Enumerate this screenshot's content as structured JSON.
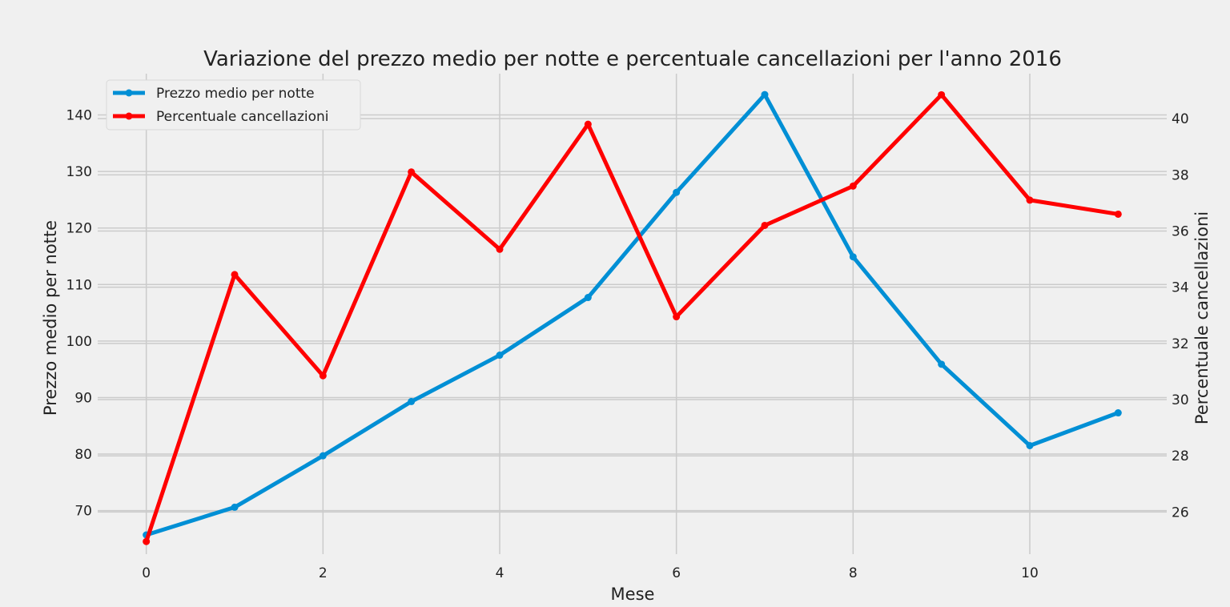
{
  "chart_data": {
    "type": "line",
    "title": "Variazione del prezzo medio per notte e percentuale cancellazioni per l'anno 2016",
    "xlabel": "Mese",
    "ylabel_left": "Prezzo medio per notte",
    "ylabel_right": "Percentuale cancellazioni",
    "x": [
      0,
      1,
      2,
      3,
      4,
      5,
      6,
      7,
      8,
      9,
      10,
      11
    ],
    "xticks": [
      0,
      2,
      4,
      6,
      8,
      10
    ],
    "xlim": [
      -0.55,
      11.55
    ],
    "ylim_left": [
      62.3,
      147.3
    ],
    "yticks_left": [
      70,
      80,
      90,
      100,
      110,
      120,
      130,
      140
    ],
    "ylim_right": [
      24.5,
      41.6
    ],
    "yticks_right": [
      26,
      28,
      30,
      32,
      34,
      36,
      38,
      40
    ],
    "grid": true,
    "legend_position": "top-left",
    "series": [
      {
        "name": "Prezzo medio per notte",
        "axis": "left",
        "color": "#008fd5",
        "values": [
          65.7,
          70.6,
          79.7,
          89.3,
          97.5,
          107.7,
          126.3,
          143.6,
          114.9,
          95.9,
          81.5,
          87.3
        ]
      },
      {
        "name": "Percentuale cancellazioni",
        "axis": "right",
        "color": "#ff0000",
        "values": [
          24.95,
          34.45,
          30.85,
          38.1,
          35.35,
          39.8,
          32.95,
          36.2,
          37.6,
          40.85,
          37.1,
          36.6
        ]
      }
    ]
  }
}
